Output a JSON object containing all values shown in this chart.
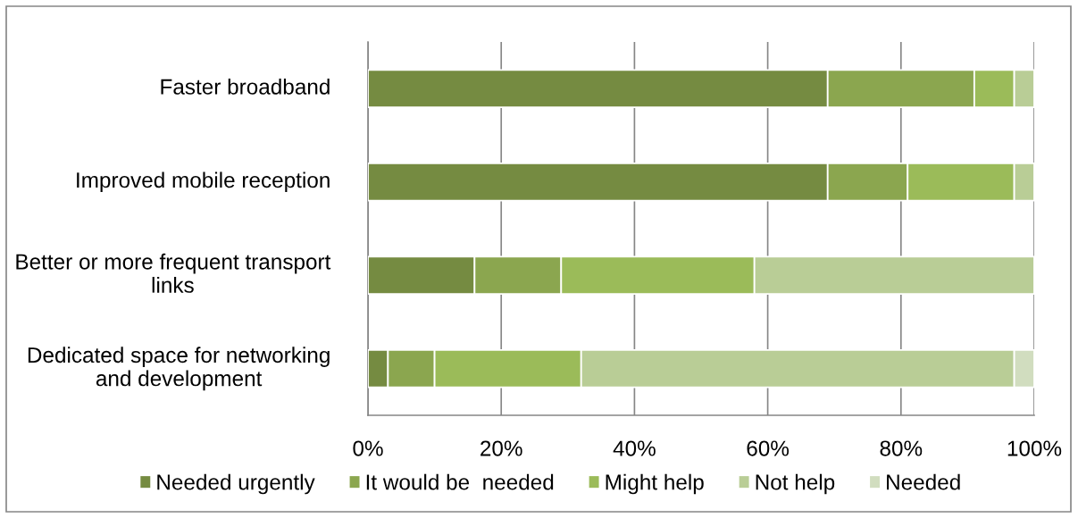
{
  "chart_data": {
    "type": "bar",
    "orientation": "horizontal",
    "stacked": true,
    "categories": [
      "Faster broadband",
      "Improved mobile reception",
      "Better or more frequent transport links",
      "Dedicated space for networking and development"
    ],
    "series": [
      {
        "name": "Needed urgently",
        "color": "#758b41",
        "values": [
          69,
          69,
          16,
          3
        ]
      },
      {
        "name": "It would be  needed",
        "color": "#8ba64f",
        "values": [
          22,
          12,
          13,
          7
        ]
      },
      {
        "name": "Might help",
        "color": "#9bbb59",
        "values": [
          6,
          16,
          29,
          22
        ]
      },
      {
        "name": "Not help",
        "color": "#b9cd96",
        "values": [
          3,
          3,
          42,
          65
        ]
      },
      {
        "name": "Needed",
        "color": "#d1ddbf",
        "values": [
          null,
          null,
          null,
          3
        ]
      }
    ],
    "xlim": [
      0,
      100
    ],
    "xticks": [
      {
        "value": 0,
        "label": "0%"
      },
      {
        "value": 20,
        "label": "20%"
      },
      {
        "value": 40,
        "label": "40%"
      },
      {
        "value": 60,
        "label": "60%"
      },
      {
        "value": 80,
        "label": "80%"
      },
      {
        "value": 100,
        "label": "100%"
      }
    ],
    "grid": "x",
    "legend": "bottom"
  }
}
